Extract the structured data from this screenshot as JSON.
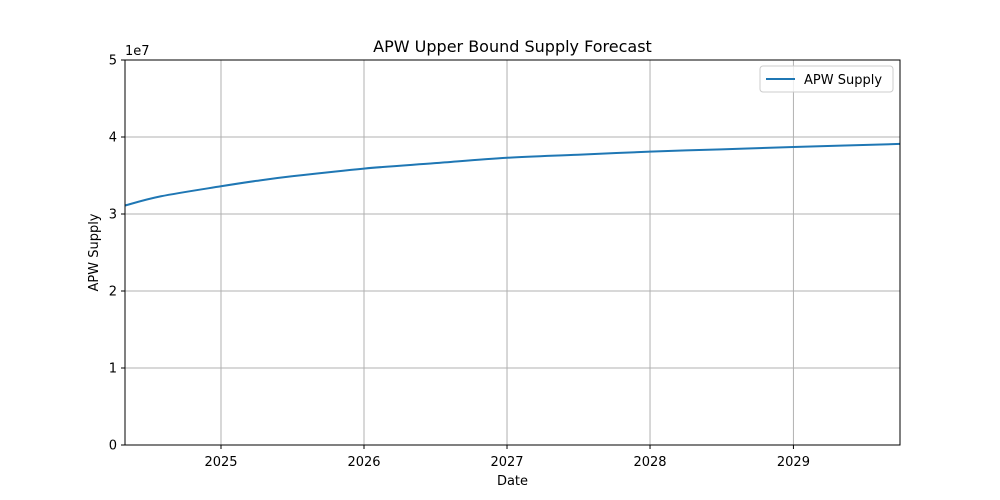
{
  "chart_data": {
    "type": "line",
    "title": "APW Upper Bound Supply Forecast",
    "xlabel": "Date",
    "ylabel": "APW Supply",
    "y_offset_label": "1e7",
    "xlim": [
      "2024-05-01",
      "2029-09-30"
    ],
    "ylim": [
      0,
      50000000
    ],
    "x_ticks": [
      {
        "label": "2025",
        "date": "2025-01-01"
      },
      {
        "label": "2026",
        "date": "2026-01-01"
      },
      {
        "label": "2027",
        "date": "2027-01-01"
      },
      {
        "label": "2028",
        "date": "2028-01-01"
      },
      {
        "label": "2029",
        "date": "2029-01-01"
      }
    ],
    "y_ticks": [
      {
        "label": "0",
        "value": 0
      },
      {
        "label": "1",
        "value": 10000000
      },
      {
        "label": "2",
        "value": 20000000
      },
      {
        "label": "3",
        "value": 30000000
      },
      {
        "label": "4",
        "value": 40000000
      },
      {
        "label": "5",
        "value": 50000000
      }
    ],
    "grid": true,
    "legend": {
      "position": "top-right",
      "entries": [
        "APW Supply"
      ]
    },
    "series": [
      {
        "name": "APW Supply",
        "color": "#1f77b4",
        "x": [
          "2024-05-01",
          "2024-08-01",
          "2025-01-01",
          "2025-04-01",
          "2025-07-01",
          "2026-01-01",
          "2026-07-01",
          "2027-01-01",
          "2027-07-01",
          "2028-01-01",
          "2028-07-01",
          "2029-01-01",
          "2029-09-30"
        ],
        "y": [
          31100000,
          32300000,
          33600000,
          34300000,
          34900000,
          35900000,
          36600000,
          37300000,
          37700000,
          38100000,
          38400000,
          38700000,
          39100000
        ]
      }
    ]
  }
}
